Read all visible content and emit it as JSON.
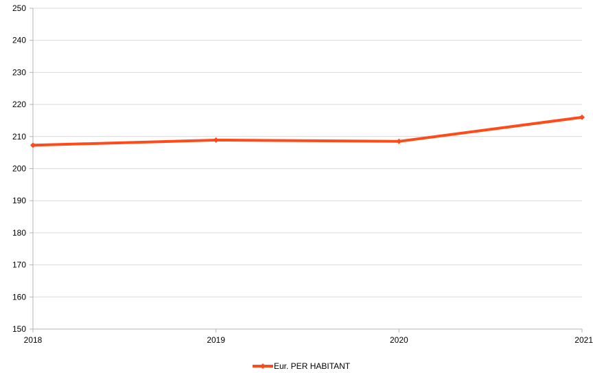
{
  "chart_data": {
    "type": "line",
    "x": [
      "2018",
      "2019",
      "2020",
      "2021"
    ],
    "series": [
      {
        "name": "Eur. PER HABITANT",
        "values": [
          207.3,
          208.9,
          208.5,
          216.0
        ],
        "color": "#ff4a1a"
      }
    ],
    "ylim": [
      150,
      250
    ],
    "yticks": [
      150,
      160,
      170,
      180,
      190,
      200,
      210,
      220,
      230,
      240,
      250
    ],
    "grid": true,
    "legend": "bottom"
  }
}
